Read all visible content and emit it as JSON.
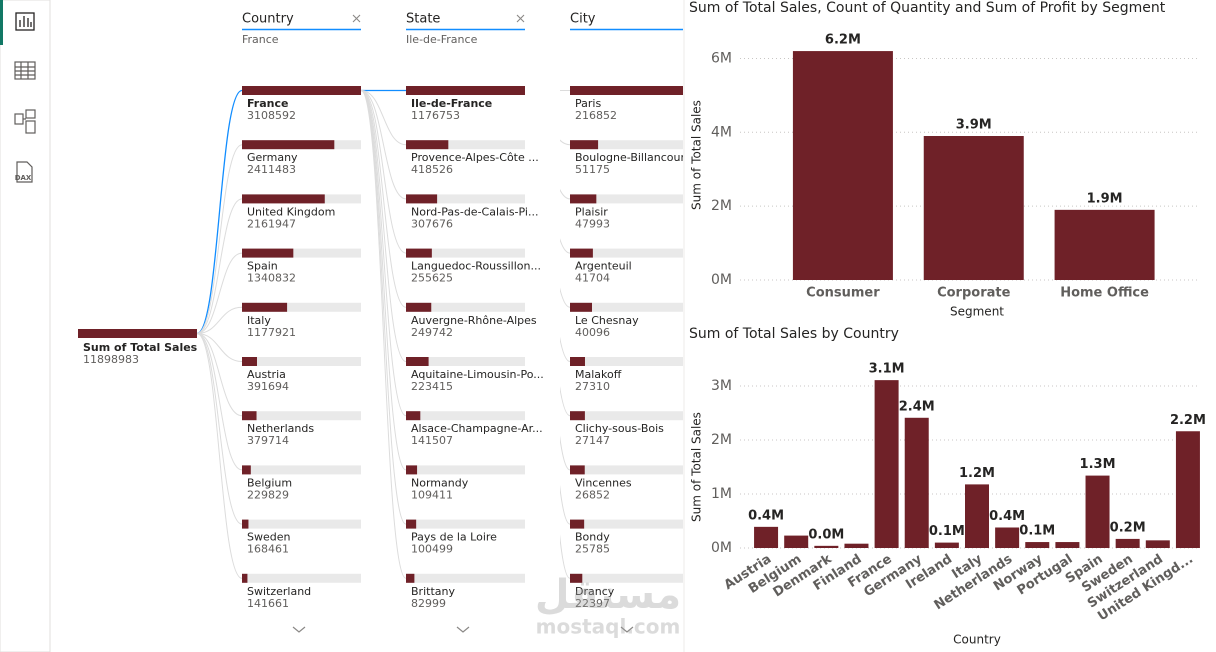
{
  "sidebar": {
    "dax_icon_label": "DAX"
  },
  "decomposition_tree": {
    "root": {
      "label": "Sum of Total Sales",
      "value": 11898983
    },
    "levels": [
      {
        "field": "Country",
        "filter": "France",
        "items": [
          {
            "name": "France",
            "value": 3108592
          },
          {
            "name": "Germany",
            "value": 2411483
          },
          {
            "name": "United Kingdom",
            "value": 2161947
          },
          {
            "name": "Spain",
            "value": 1340832
          },
          {
            "name": "Italy",
            "value": 1177921
          },
          {
            "name": "Austria",
            "value": 391694
          },
          {
            "name": "Netherlands",
            "value": 379714
          },
          {
            "name": "Belgium",
            "value": 229829
          },
          {
            "name": "Sweden",
            "value": 168461
          },
          {
            "name": "Switzerland",
            "value": 141661
          }
        ]
      },
      {
        "field": "State",
        "filter": "Ile-de-France",
        "items": [
          {
            "name": "Ile-de-France",
            "value": 1176753
          },
          {
            "name": "Provence-Alpes-Côte ...",
            "value": 418526
          },
          {
            "name": "Nord-Pas-de-Calais-Pi...",
            "value": 307676
          },
          {
            "name": "Languedoc-Roussillon...",
            "value": 255625
          },
          {
            "name": "Auvergne-Rhône-Alpes",
            "value": 249742
          },
          {
            "name": "Aquitaine-Limousin-Po...",
            "value": 223415
          },
          {
            "name": "Alsace-Champagne-Ar...",
            "value": 141507
          },
          {
            "name": "Normandy",
            "value": 109411
          },
          {
            "name": "Pays de la Loire",
            "value": 100499
          },
          {
            "name": "Brittany",
            "value": 82999
          }
        ]
      },
      {
        "field": "City",
        "items": [
          {
            "name": "Paris",
            "value": 216852
          },
          {
            "name": "Boulogne-Billancourt",
            "value": 51175
          },
          {
            "name": "Plaisir",
            "value": 47993
          },
          {
            "name": "Argenteuil",
            "value": 41704
          },
          {
            "name": "Le Chesnay",
            "value": 40096
          },
          {
            "name": "Malakoff",
            "value": 27310
          },
          {
            "name": "Clichy-sous-Bois",
            "value": 27147
          },
          {
            "name": "Vincennes",
            "value": 26852
          },
          {
            "name": "Bondy",
            "value": 25785
          },
          {
            "name": "Drancy",
            "value": 22397
          }
        ]
      }
    ]
  },
  "chart_data": [
    {
      "type": "bar",
      "title": "Sum of Total Sales, Count of Quantity and Sum of Profit by Segment",
      "x_label": "Segment",
      "y_label": "Sum of Total Sales",
      "categories": [
        "Consumer",
        "Corporate",
        "Home Office"
      ],
      "values": [
        6200000,
        3900000,
        1900000
      ],
      "value_labels": [
        "6.2M",
        "3.9M",
        "1.9M"
      ],
      "color": "#6f2128",
      "ylim": [
        0,
        6500000
      ],
      "yticks": [
        {
          "value": 0,
          "label": "0M"
        },
        {
          "value": 2000000,
          "label": "2M"
        },
        {
          "value": 4000000,
          "label": "4M"
        },
        {
          "value": 6000000,
          "label": "6M"
        }
      ],
      "grid": true
    },
    {
      "type": "bar",
      "title": "Sum of Total Sales by Country",
      "x_label": "Country",
      "y_label": "Sum of Total Sales",
      "categories": [
        "Austria",
        "Belgium",
        "Denmark",
        "Finland",
        "France",
        "Germany",
        "Ireland",
        "Italy",
        "Netherlands",
        "Norway",
        "Portugal",
        "Spain",
        "Sweden",
        "Switzerland",
        "United Kingd..."
      ],
      "values": [
        391694,
        229829,
        40000,
        80000,
        3108592,
        2411483,
        100000,
        1177921,
        379714,
        110000,
        110000,
        1340832,
        168461,
        141661,
        2161947
      ],
      "value_labels": [
        "0.4M",
        null,
        "0.0M",
        null,
        "3.1M",
        "2.4M",
        "0.1M",
        "1.2M",
        "0.4M",
        "0.1M",
        null,
        "1.3M",
        "0.2M",
        null,
        "2.2M"
      ],
      "color": "#6f2128",
      "ylim": [
        0,
        3300000
      ],
      "yticks": [
        {
          "value": 0,
          "label": "0M"
        },
        {
          "value": 1000000,
          "label": "1M"
        },
        {
          "value": 2000000,
          "label": "2M"
        },
        {
          "value": 3000000,
          "label": "3M"
        }
      ],
      "grid": true
    }
  ],
  "watermark": {
    "logo": "مستقل",
    "site": "mostaql.com"
  }
}
